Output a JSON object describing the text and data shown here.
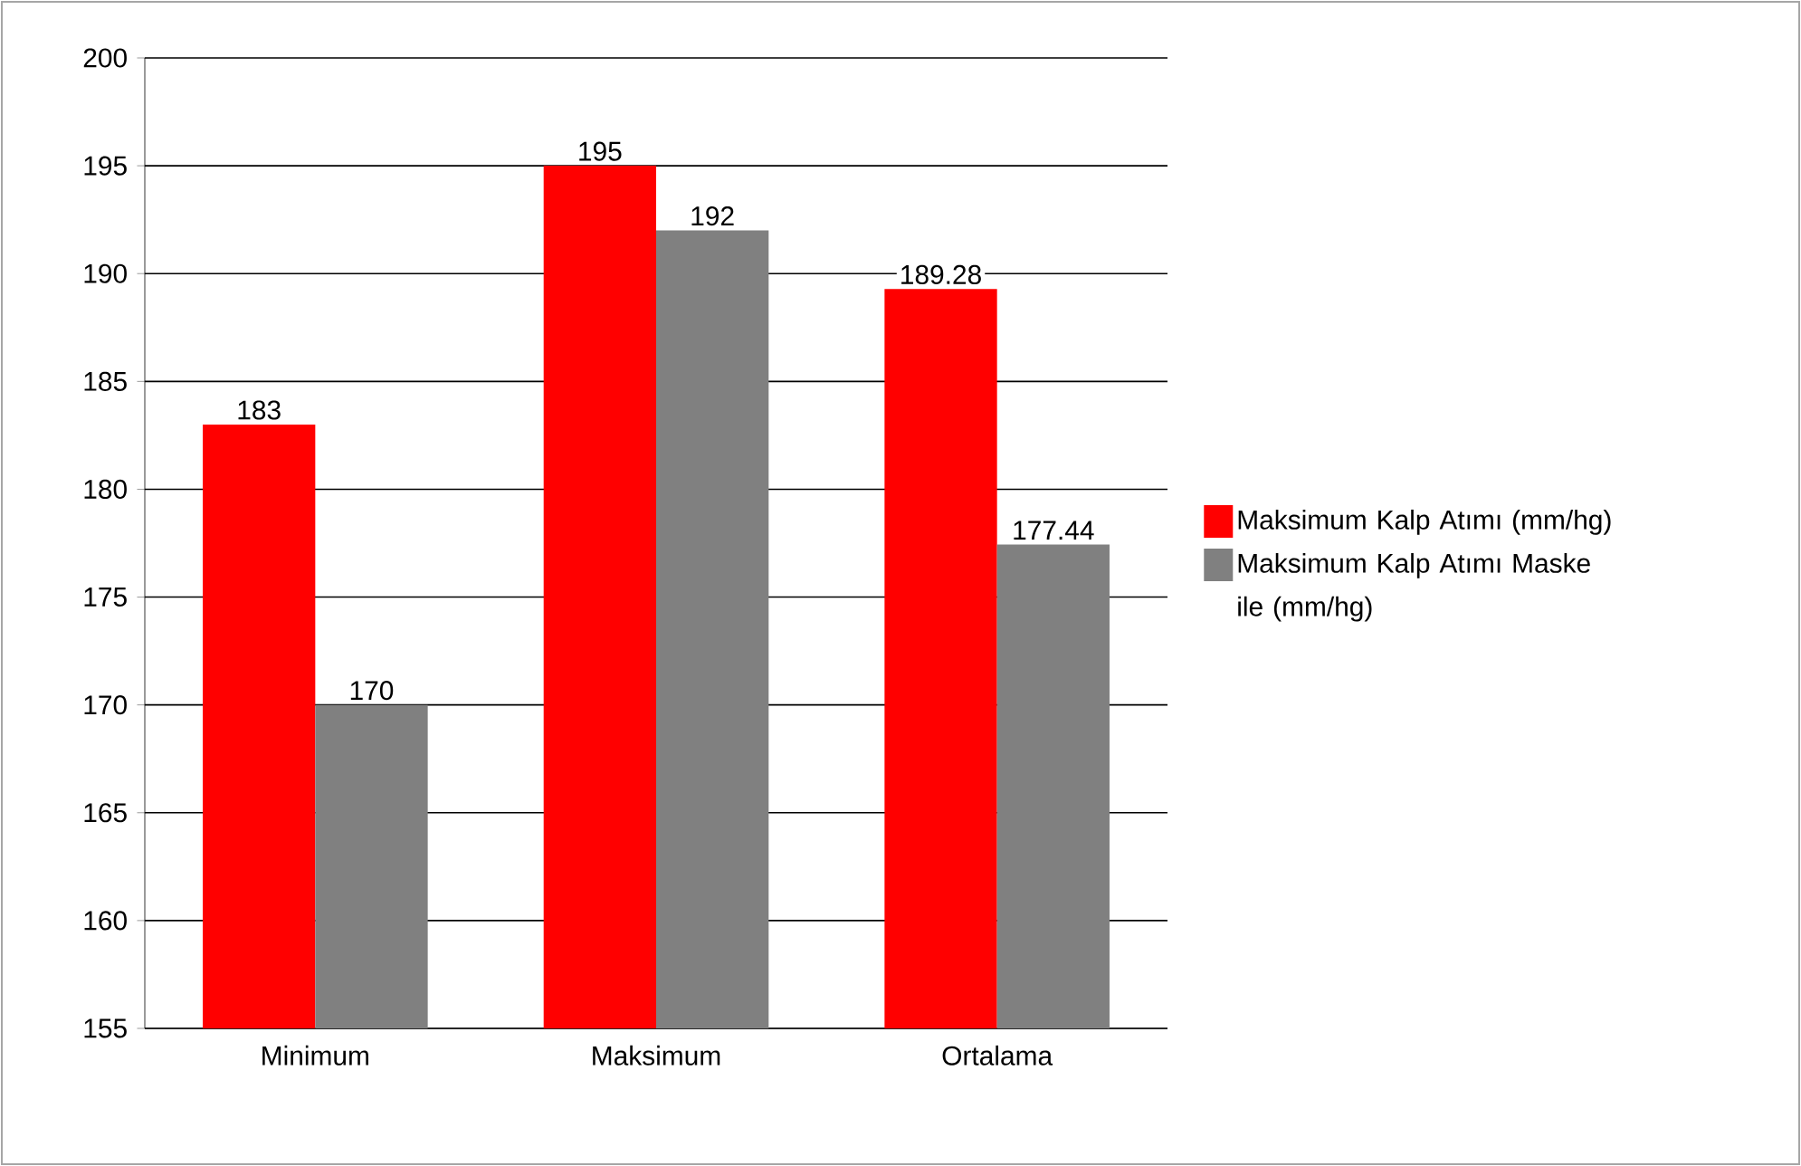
{
  "chart_data": {
    "type": "bar",
    "categories": [
      "Minimum",
      "Maksimum",
      "Ortalama"
    ],
    "series": [
      {
        "name": "Maksimum Kalp Atımı (mm/hg)",
        "color": "#ff0000",
        "values": [
          183,
          195,
          189.28
        ]
      },
      {
        "name": "Maksimum Kalp Atımı Maske ile (mm/hg)",
        "color": "#808080",
        "values": [
          170,
          192,
          177.44
        ]
      }
    ],
    "ylim": [
      155,
      200
    ],
    "yticks": [
      155,
      160,
      165,
      170,
      175,
      180,
      185,
      190,
      195,
      200
    ],
    "grid": "y",
    "legend": "right",
    "data_labels": true
  }
}
